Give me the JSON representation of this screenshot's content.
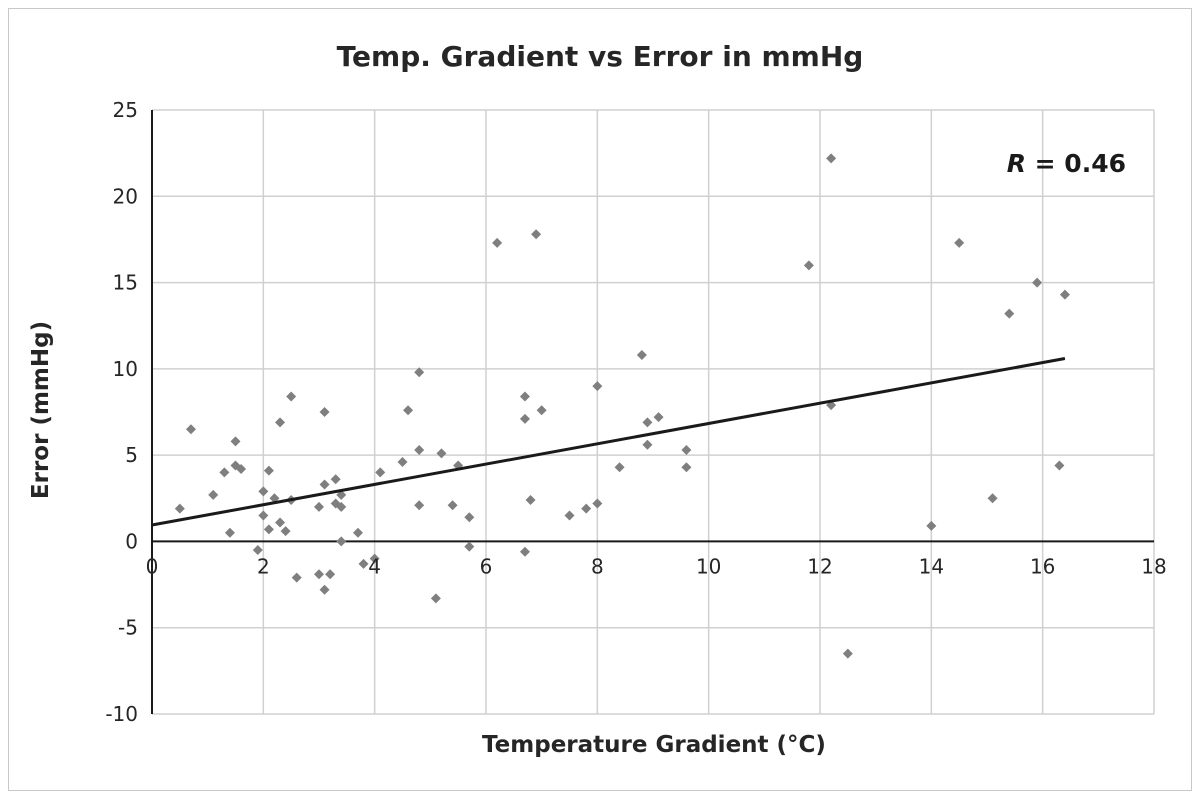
{
  "chart_data": {
    "type": "scatter",
    "title": "Temp. Gradient vs Error in mmHg",
    "xlabel": "Temperature Gradient (°C)",
    "ylabel": "Error (mmHg)",
    "xlim": [
      0,
      18
    ],
    "ylim": [
      -10,
      25
    ],
    "x_ticks": [
      0,
      2,
      4,
      6,
      8,
      10,
      12,
      14,
      16,
      18
    ],
    "y_ticks": [
      -10,
      -5,
      0,
      5,
      10,
      15,
      20,
      25
    ],
    "grid": true,
    "legend": "none",
    "point_color": "#7f7f7f",
    "trendline_color": "#1a1a1a",
    "annotation": {
      "italic": "R",
      "rest": " = 0.46"
    },
    "trendline": {
      "x": [
        0,
        16.4
      ],
      "y": [
        0.95,
        10.6
      ]
    },
    "points": [
      {
        "x": 0.5,
        "y": 1.9
      },
      {
        "x": 0.7,
        "y": 6.5
      },
      {
        "x": 1.1,
        "y": 2.7
      },
      {
        "x": 1.3,
        "y": 4.0
      },
      {
        "x": 1.4,
        "y": 0.5
      },
      {
        "x": 1.5,
        "y": 5.8
      },
      {
        "x": 1.5,
        "y": 4.4
      },
      {
        "x": 1.6,
        "y": 4.2
      },
      {
        "x": 1.9,
        "y": -0.5
      },
      {
        "x": 2.0,
        "y": 2.9
      },
      {
        "x": 2.0,
        "y": 1.5
      },
      {
        "x": 2.1,
        "y": 0.7
      },
      {
        "x": 2.1,
        "y": 4.1
      },
      {
        "x": 2.2,
        "y": 2.5
      },
      {
        "x": 2.3,
        "y": 6.9
      },
      {
        "x": 2.3,
        "y": 1.1
      },
      {
        "x": 2.4,
        "y": 0.6
      },
      {
        "x": 2.5,
        "y": 2.4
      },
      {
        "x": 2.5,
        "y": 8.4
      },
      {
        "x": 2.6,
        "y": -2.1
      },
      {
        "x": 3.0,
        "y": 2.0
      },
      {
        "x": 3.0,
        "y": -1.9
      },
      {
        "x": 3.1,
        "y": 7.5
      },
      {
        "x": 3.1,
        "y": 3.3
      },
      {
        "x": 3.1,
        "y": -2.8
      },
      {
        "x": 3.2,
        "y": -1.9
      },
      {
        "x": 3.3,
        "y": 3.6
      },
      {
        "x": 3.3,
        "y": 2.2
      },
      {
        "x": 3.4,
        "y": 2.0
      },
      {
        "x": 3.4,
        "y": 2.7
      },
      {
        "x": 3.4,
        "y": 0.0
      },
      {
        "x": 3.7,
        "y": 0.5
      },
      {
        "x": 3.8,
        "y": -1.3
      },
      {
        "x": 4.0,
        "y": -1.0
      },
      {
        "x": 4.1,
        "y": 4.0
      },
      {
        "x": 4.5,
        "y": 4.6
      },
      {
        "x": 4.6,
        "y": 7.6
      },
      {
        "x": 4.8,
        "y": 9.8
      },
      {
        "x": 4.8,
        "y": 5.3
      },
      {
        "x": 4.8,
        "y": 2.1
      },
      {
        "x": 5.1,
        "y": -3.3
      },
      {
        "x": 5.2,
        "y": 5.1
      },
      {
        "x": 5.4,
        "y": 2.1
      },
      {
        "x": 5.5,
        "y": 4.4
      },
      {
        "x": 5.7,
        "y": 1.4
      },
      {
        "x": 5.7,
        "y": -0.3
      },
      {
        "x": 6.2,
        "y": 17.3
      },
      {
        "x": 6.7,
        "y": 8.4
      },
      {
        "x": 6.7,
        "y": 7.1
      },
      {
        "x": 6.7,
        "y": -0.6
      },
      {
        "x": 6.8,
        "y": 2.4
      },
      {
        "x": 6.9,
        "y": 17.8
      },
      {
        "x": 7.0,
        "y": 7.6
      },
      {
        "x": 7.5,
        "y": 1.5
      },
      {
        "x": 7.8,
        "y": 1.9
      },
      {
        "x": 8.0,
        "y": 9.0
      },
      {
        "x": 8.0,
        "y": 2.2
      },
      {
        "x": 8.4,
        "y": 4.3
      },
      {
        "x": 8.8,
        "y": 10.8
      },
      {
        "x": 8.9,
        "y": 6.9
      },
      {
        "x": 8.9,
        "y": 5.6
      },
      {
        "x": 9.1,
        "y": 7.2
      },
      {
        "x": 9.6,
        "y": 5.3
      },
      {
        "x": 9.6,
        "y": 4.3
      },
      {
        "x": 11.8,
        "y": 16.0
      },
      {
        "x": 12.2,
        "y": 22.2
      },
      {
        "x": 12.2,
        "y": 7.9
      },
      {
        "x": 12.5,
        "y": -6.5
      },
      {
        "x": 14.0,
        "y": 0.9
      },
      {
        "x": 14.5,
        "y": 17.3
      },
      {
        "x": 15.1,
        "y": 2.5
      },
      {
        "x": 15.4,
        "y": 13.2
      },
      {
        "x": 15.9,
        "y": 15.0
      },
      {
        "x": 16.3,
        "y": 4.4
      },
      {
        "x": 16.4,
        "y": 14.3
      }
    ]
  }
}
